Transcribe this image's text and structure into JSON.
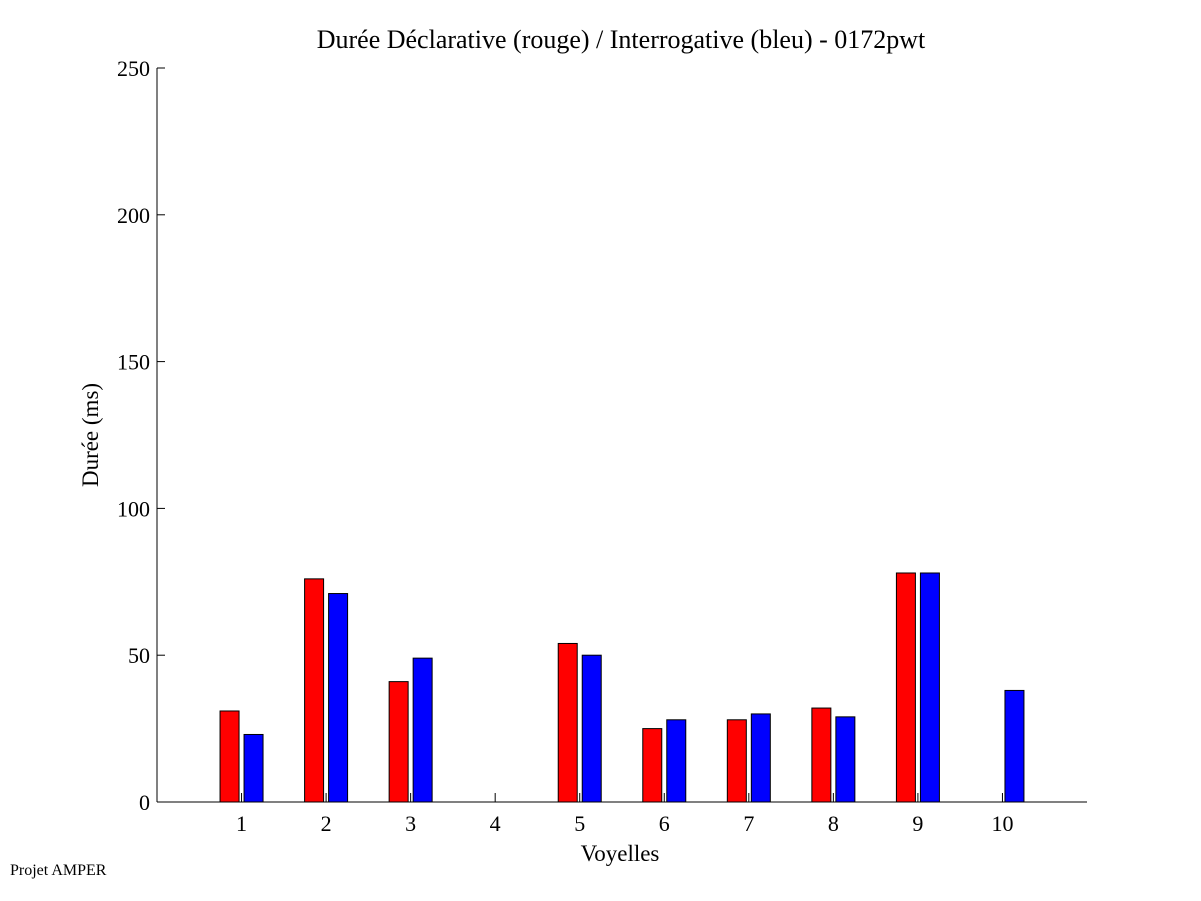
{
  "chart_data": {
    "type": "bar",
    "title": "Durée Déclarative (rouge) / Interrogative (bleu) - 0172pwt",
    "xlabel": "Voyelles",
    "ylabel": "Durée (ms)",
    "ylim": [
      0,
      250
    ],
    "yticks": [
      0,
      50,
      100,
      150,
      200,
      250
    ],
    "categories": [
      "1",
      "2",
      "3",
      "4",
      "5",
      "6",
      "7",
      "8",
      "9",
      "10"
    ],
    "series": [
      {
        "color": "#ff0000",
        "values": [
          31,
          76,
          41,
          0,
          54,
          25,
          28,
          32,
          78,
          0
        ]
      },
      {
        "color": "#0000ff",
        "values": [
          23,
          71,
          49,
          0,
          50,
          28,
          30,
          29,
          78,
          38
        ]
      }
    ],
    "grid": false,
    "legend": "none"
  },
  "footer": {
    "note": "Projet AMPER"
  }
}
